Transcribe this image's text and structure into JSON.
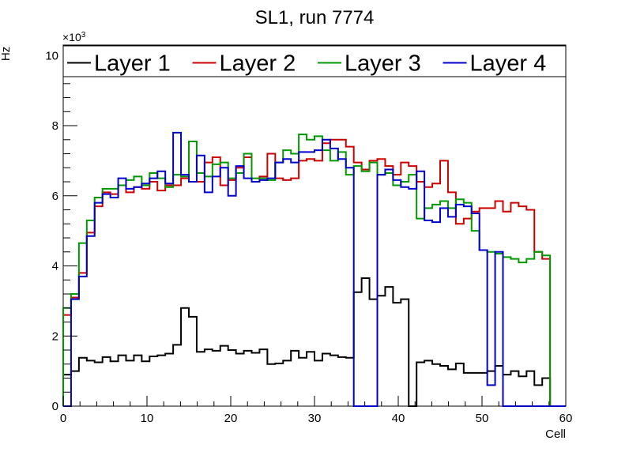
{
  "chart_data": {
    "type": "line",
    "title": "SL1, run 7774",
    "xlabel": "Cell",
    "ylabel": "Hz",
    "exponent_label": "×10",
    "exponent_power": "3",
    "xlim": [
      0,
      60
    ],
    "ylim": [
      0,
      10.3
    ],
    "x_ticks": [
      "0",
      "10",
      "20",
      "30",
      "40",
      "50",
      "60"
    ],
    "y_ticks": [
      "0",
      "2",
      "4",
      "6",
      "8",
      "10"
    ],
    "legend_position": "top",
    "series": [
      {
        "name": "Layer 1",
        "color": "#000000",
        "values": [
          0.9,
          1.0,
          1.38,
          1.3,
          1.25,
          1.4,
          1.28,
          1.45,
          1.3,
          1.45,
          1.28,
          1.42,
          1.45,
          1.5,
          1.75,
          2.8,
          2.55,
          1.55,
          1.62,
          1.58,
          1.72,
          1.6,
          1.5,
          1.58,
          1.52,
          1.62,
          1.2,
          1.22,
          1.3,
          1.58,
          1.38,
          1.55,
          1.3,
          1.5,
          1.45,
          1.4,
          1.38,
          3.25,
          3.65,
          3.05,
          3.15,
          3.4,
          2.95,
          3.05,
          0.0,
          1.25,
          1.3,
          1.2,
          1.15,
          1.05,
          1.22,
          0.95,
          0.95,
          0.95,
          1.0,
          1.15,
          0.9,
          1.0,
          0.85,
          1.0,
          0.6,
          0.8,
          0.0,
          0.0
        ]
      },
      {
        "name": "Layer 2",
        "color": "#cc0000",
        "values": [
          2.6,
          3.1,
          3.8,
          4.95,
          5.7,
          6.1,
          6.05,
          6.3,
          6.1,
          6.25,
          6.2,
          6.4,
          6.15,
          6.3,
          6.3,
          6.5,
          6.4,
          6.4,
          6.95,
          7.1,
          6.3,
          6.45,
          6.8,
          7.1,
          6.4,
          6.55,
          7.2,
          6.5,
          6.45,
          6.5,
          7.0,
          7.05,
          7.0,
          7.5,
          7.6,
          7.6,
          7.4,
          6.95,
          6.75,
          7.0,
          7.05,
          6.85,
          6.6,
          6.95,
          6.85,
          6.4,
          6.25,
          6.35,
          7.0,
          6.1,
          5.2,
          5.35,
          5.55,
          5.65,
          5.65,
          5.85,
          5.55,
          5.8,
          5.7,
          5.6,
          4.4,
          4.2,
          0.0,
          0.0
        ]
      },
      {
        "name": "Layer 3",
        "color": "#009900",
        "values": [
          2.8,
          3.2,
          4.65,
          5.3,
          5.95,
          6.2,
          6.2,
          6.3,
          6.45,
          6.55,
          6.3,
          6.65,
          6.5,
          6.25,
          6.6,
          6.55,
          7.55,
          6.65,
          6.55,
          6.9,
          6.95,
          6.5,
          6.65,
          7.2,
          6.5,
          6.5,
          6.45,
          6.95,
          7.3,
          7.2,
          7.75,
          7.6,
          7.7,
          7.3,
          7.0,
          7.25,
          6.6,
          6.85,
          6.7,
          6.95,
          6.6,
          6.65,
          6.3,
          6.4,
          6.6,
          5.35,
          5.65,
          5.75,
          5.85,
          5.65,
          5.9,
          5.8,
          5.0,
          4.45,
          4.4,
          4.35,
          4.25,
          4.2,
          4.1,
          4.2,
          4.4,
          4.3,
          0.0,
          0.0
        ]
      },
      {
        "name": "Layer 4",
        "color": "#0000cc",
        "values": [
          0.0,
          3.05,
          3.7,
          4.85,
          5.8,
          6.05,
          5.95,
          6.5,
          6.2,
          6.25,
          6.35,
          6.5,
          6.7,
          6.35,
          7.8,
          6.6,
          6.4,
          7.15,
          6.1,
          6.55,
          6.8,
          6.0,
          6.85,
          6.5,
          6.4,
          6.45,
          6.5,
          6.95,
          7.05,
          6.95,
          7.25,
          7.25,
          7.3,
          7.6,
          7.35,
          7.05,
          6.8,
          0.0,
          0.0,
          0.0,
          6.6,
          6.75,
          6.45,
          6.25,
          6.2,
          6.7,
          5.3,
          5.25,
          5.65,
          5.4,
          5.75,
          5.7,
          5.5,
          4.45,
          0.6,
          4.4,
          0.0,
          0.0,
          0.0,
          0.0,
          0.0,
          0.0,
          0.0,
          0.0
        ]
      }
    ]
  }
}
